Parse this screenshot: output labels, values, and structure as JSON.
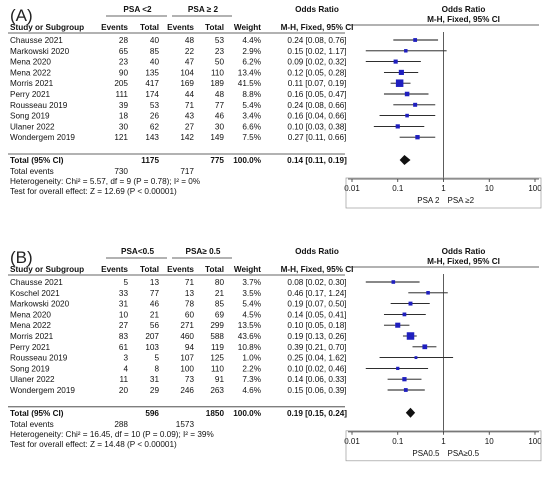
{
  "figure_title": "",
  "panels": [
    {
      "label": "(A)",
      "exp_group": "PSA <2",
      "ctl_group": "PSA ≥ 2",
      "header_study": "Study or Subgroup",
      "header_events": "Events",
      "header_total": "Total",
      "header_weight": "Weight",
      "header_or": "Odds Ratio",
      "header_method": "M-H, Fixed, 95% CI",
      "studies": [
        {
          "name": "Chausse 2021",
          "e1": "28",
          "t1": "40",
          "e2": "48",
          "t2": "53",
          "w": "4.4%",
          "ci": "0.24 [0.08, 0.76]"
        },
        {
          "name": "Markowski 2020",
          "e1": "65",
          "t1": "85",
          "e2": "22",
          "t2": "23",
          "w": "2.9%",
          "ci": "0.15 [0.02, 1.17]"
        },
        {
          "name": "Mena 2020",
          "e1": "23",
          "t1": "40",
          "e2": "47",
          "t2": "50",
          "w": "6.2%",
          "ci": "0.09 [0.02, 0.32]"
        },
        {
          "name": "Mena 2022",
          "e1": "90",
          "t1": "135",
          "e2": "104",
          "t2": "110",
          "w": "13.4%",
          "ci": "0.12 [0.05, 0.28]"
        },
        {
          "name": "Morris 2021",
          "e1": "205",
          "t1": "417",
          "e2": "169",
          "t2": "189",
          "w": "41.5%",
          "ci": "0.11 [0.07, 0.19]"
        },
        {
          "name": "Perry 2021",
          "e1": "111",
          "t1": "174",
          "e2": "44",
          "t2": "48",
          "w": "8.8%",
          "ci": "0.16 [0.05, 0.47]"
        },
        {
          "name": "Rousseau 2019",
          "e1": "39",
          "t1": "53",
          "e2": "71",
          "t2": "77",
          "w": "5.4%",
          "ci": "0.24 [0.08, 0.66]"
        },
        {
          "name": "Song 2019",
          "e1": "18",
          "t1": "26",
          "e2": "43",
          "t2": "46",
          "w": "3.4%",
          "ci": "0.16 [0.04, 0.66]"
        },
        {
          "name": "Ulaner 2022",
          "e1": "30",
          "t1": "62",
          "e2": "27",
          "t2": "30",
          "w": "6.6%",
          "ci": "0.10 [0.03, 0.38]"
        },
        {
          "name": "Wondergem 2019",
          "e1": "121",
          "t1": "143",
          "e2": "142",
          "t2": "149",
          "w": "7.5%",
          "ci": "0.27 [0.11, 0.66]"
        }
      ],
      "total_label": "Total (95% CI)",
      "total_t1": "1175",
      "total_t2": "775",
      "total_w": "100.0%",
      "total_ci": "0.14 [0.11, 0.19]",
      "events_label": "Total events",
      "events_e1": "730",
      "events_e2": "717",
      "heterogeneity": "Heterogeneity: Chi² = 5.57, df = 9 (P = 0.78); I² = 0%",
      "overall": "Test for overall effect: Z = 12.69 (P < 0.00001)",
      "axis_ticks": [
        "0.01",
        "0.1",
        "1",
        "10",
        "100"
      ],
      "favours_left": "PSA 2",
      "favours_right": "PSA ≥2"
    },
    {
      "label": "(B)",
      "exp_group": "PSA<0.5",
      "ctl_group": "PSA≥ 0.5",
      "header_study": "Study or Subgroup",
      "header_events": "Events",
      "header_total": "Total",
      "header_weight": "Weight",
      "header_or": "Odds Ratio",
      "header_method": "M-H, Fixed, 95% CI",
      "studies": [
        {
          "name": "Chausse 2021",
          "e1": "5",
          "t1": "13",
          "e2": "71",
          "t2": "80",
          "w": "3.7%",
          "ci": "0.08 [0.02, 0.30]"
        },
        {
          "name": "Koschel 2021",
          "e1": "33",
          "t1": "77",
          "e2": "13",
          "t2": "21",
          "w": "3.5%",
          "ci": "0.46 [0.17, 1.24]"
        },
        {
          "name": "Markowski 2020",
          "e1": "31",
          "t1": "46",
          "e2": "78",
          "t2": "85",
          "w": "5.4%",
          "ci": "0.19 [0.07, 0.50]"
        },
        {
          "name": "Mena 2020",
          "e1": "10",
          "t1": "21",
          "e2": "60",
          "t2": "69",
          "w": "4.5%",
          "ci": "0.14 [0.05, 0.41]"
        },
        {
          "name": "Mena 2022",
          "e1": "27",
          "t1": "56",
          "e2": "271",
          "t2": "299",
          "w": "13.5%",
          "ci": "0.10 [0.05, 0.18]"
        },
        {
          "name": "Morris 2021",
          "e1": "83",
          "t1": "207",
          "e2": "460",
          "t2": "588",
          "w": "43.6%",
          "ci": "0.19 [0.13, 0.26]"
        },
        {
          "name": "Perry 2021",
          "e1": "61",
          "t1": "103",
          "e2": "94",
          "t2": "119",
          "w": "10.8%",
          "ci": "0.39 [0.21, 0.70]"
        },
        {
          "name": "Rousseau 2019",
          "e1": "3",
          "t1": "5",
          "e2": "107",
          "t2": "125",
          "w": "1.0%",
          "ci": "0.25 [0.04, 1.62]"
        },
        {
          "name": "Song 2019",
          "e1": "4",
          "t1": "8",
          "e2": "100",
          "t2": "110",
          "w": "2.2%",
          "ci": "0.10 [0.02, 0.46]"
        },
        {
          "name": "Ulaner 2022",
          "e1": "11",
          "t1": "31",
          "e2": "73",
          "t2": "91",
          "w": "7.3%",
          "ci": "0.14 [0.06, 0.33]"
        },
        {
          "name": "Wondergem 2019",
          "e1": "20",
          "t1": "29",
          "e2": "246",
          "t2": "263",
          "w": "4.6%",
          "ci": "0.15 [0.06, 0.39]"
        }
      ],
      "total_label": "Total (95% CI)",
      "total_t1": "596",
      "total_t2": "1850",
      "total_w": "100.0%",
      "total_ci": "0.19 [0.15, 0.24]",
      "events_label": "Total events",
      "events_e1": "288",
      "events_e2": "1573",
      "heterogeneity": "Heterogeneity: Chi² = 16.45, df = 10 (P = 0.09); I² = 39%",
      "overall": "Test for overall effect: Z = 14.48 (P < 0.00001)",
      "axis_ticks": [
        "0.01",
        "0.1",
        "1",
        "10",
        "100"
      ],
      "favours_left": "PSA0.5",
      "favours_right": "PSA≥0.5"
    }
  ],
  "chart_data": [
    {
      "type": "forest",
      "panel": "A",
      "x_scale": "log",
      "xlim": [
        0.01,
        100
      ],
      "reference_line": 1,
      "points": [
        {
          "study": "Chausse 2021",
          "or": 0.24,
          "lo": 0.08,
          "hi": 0.76,
          "weight": 4.4
        },
        {
          "study": "Markowski 2020",
          "or": 0.15,
          "lo": 0.02,
          "hi": 1.17,
          "weight": 2.9
        },
        {
          "study": "Mena 2020",
          "or": 0.09,
          "lo": 0.02,
          "hi": 0.32,
          "weight": 6.2
        },
        {
          "study": "Mena 2022",
          "or": 0.12,
          "lo": 0.05,
          "hi": 0.28,
          "weight": 13.4
        },
        {
          "study": "Morris 2021",
          "or": 0.11,
          "lo": 0.07,
          "hi": 0.19,
          "weight": 41.5
        },
        {
          "study": "Perry 2021",
          "or": 0.16,
          "lo": 0.05,
          "hi": 0.47,
          "weight": 8.8
        },
        {
          "study": "Rousseau 2019",
          "or": 0.24,
          "lo": 0.08,
          "hi": 0.66,
          "weight": 5.4
        },
        {
          "study": "Song 2019",
          "or": 0.16,
          "lo": 0.04,
          "hi": 0.66,
          "weight": 3.4
        },
        {
          "study": "Ulaner 2022",
          "or": 0.1,
          "lo": 0.03,
          "hi": 0.38,
          "weight": 6.6
        },
        {
          "study": "Wondergem 2019",
          "or": 0.27,
          "lo": 0.11,
          "hi": 0.66,
          "weight": 7.5
        }
      ],
      "pooled": {
        "or": 0.14,
        "lo": 0.11,
        "hi": 0.19
      }
    },
    {
      "type": "forest",
      "panel": "B",
      "x_scale": "log",
      "xlim": [
        0.01,
        100
      ],
      "reference_line": 1,
      "points": [
        {
          "study": "Chausse 2021",
          "or": 0.08,
          "lo": 0.02,
          "hi": 0.3,
          "weight": 3.7
        },
        {
          "study": "Koschel 2021",
          "or": 0.46,
          "lo": 0.17,
          "hi": 1.24,
          "weight": 3.5
        },
        {
          "study": "Markowski 2020",
          "or": 0.19,
          "lo": 0.07,
          "hi": 0.5,
          "weight": 5.4
        },
        {
          "study": "Mena 2020",
          "or": 0.14,
          "lo": 0.05,
          "hi": 0.41,
          "weight": 4.5
        },
        {
          "study": "Mena 2022",
          "or": 0.1,
          "lo": 0.05,
          "hi": 0.18,
          "weight": 13.5
        },
        {
          "study": "Morris 2021",
          "or": 0.19,
          "lo": 0.13,
          "hi": 0.26,
          "weight": 43.6
        },
        {
          "study": "Perry 2021",
          "or": 0.39,
          "lo": 0.21,
          "hi": 0.7,
          "weight": 10.8
        },
        {
          "study": "Rousseau 2019",
          "or": 0.25,
          "lo": 0.04,
          "hi": 1.62,
          "weight": 1.0
        },
        {
          "study": "Song 2019",
          "or": 0.1,
          "lo": 0.02,
          "hi": 0.46,
          "weight": 2.2
        },
        {
          "study": "Ulaner 2022",
          "or": 0.14,
          "lo": 0.06,
          "hi": 0.33,
          "weight": 7.3
        },
        {
          "study": "Wondergem 2019",
          "or": 0.15,
          "lo": 0.06,
          "hi": 0.39,
          "weight": 4.6
        }
      ],
      "pooled": {
        "or": 0.19,
        "lo": 0.15,
        "hi": 0.24
      }
    }
  ],
  "colors": {
    "marker": "#1f1fbf",
    "ink": "#111111",
    "rule": "#333333"
  }
}
